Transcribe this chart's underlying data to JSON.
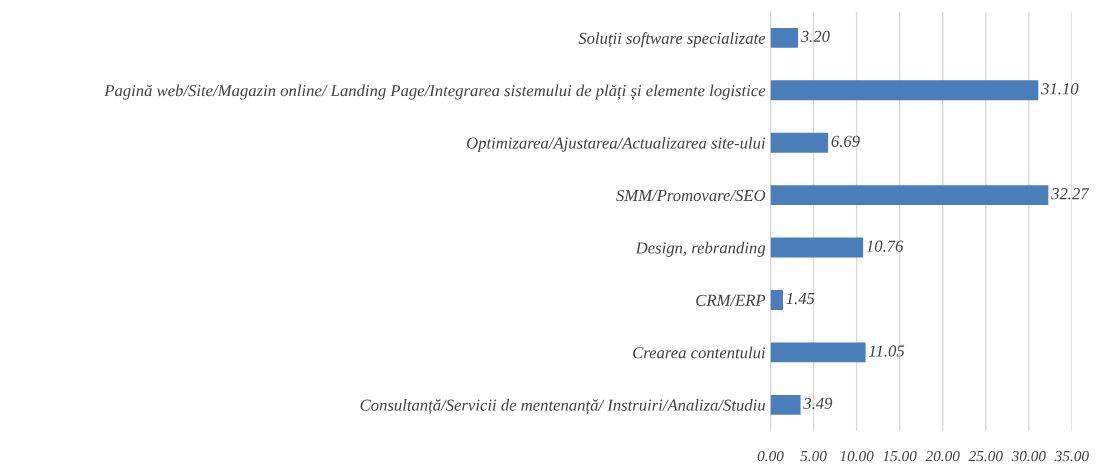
{
  "chart_data": {
    "type": "bar",
    "orientation": "horizontal",
    "categories": [
      "Soluții software specializate",
      "Pagină web/Site/Magazin online/ Landing Page/Integrarea sistemului de plăți și elemente logistice",
      "Optimizarea/Ajustarea/Actualizarea site-ului",
      "SMM/Promovare/SEO",
      "Design, rebranding",
      "CRM/ERP",
      "Crearea contentului",
      "Consultanță/Servicii de mentenanță/ Instruiri/Analiza/Studiu"
    ],
    "values": [
      3.2,
      31.1,
      6.69,
      32.27,
      10.76,
      1.45,
      11.05,
      3.49
    ],
    "value_labels": [
      "3.20",
      "31.10",
      "6.69",
      "32.27",
      "10.76",
      "1.45",
      "11.05",
      "3.49"
    ],
    "color": "#4a7ebb",
    "xlim": [
      0,
      35
    ],
    "xticks": [
      {
        "value": 0,
        "label": "0.00"
      },
      {
        "value": 5,
        "label": "5.00"
      },
      {
        "value": 10,
        "label": "10.00"
      },
      {
        "value": 15,
        "label": "15.00"
      },
      {
        "value": 20,
        "label": "20.00"
      },
      {
        "value": 25,
        "label": "25.00"
      },
      {
        "value": 30,
        "label": "30.00"
      },
      {
        "value": 35,
        "label": "35.00"
      }
    ],
    "grid": "x"
  }
}
